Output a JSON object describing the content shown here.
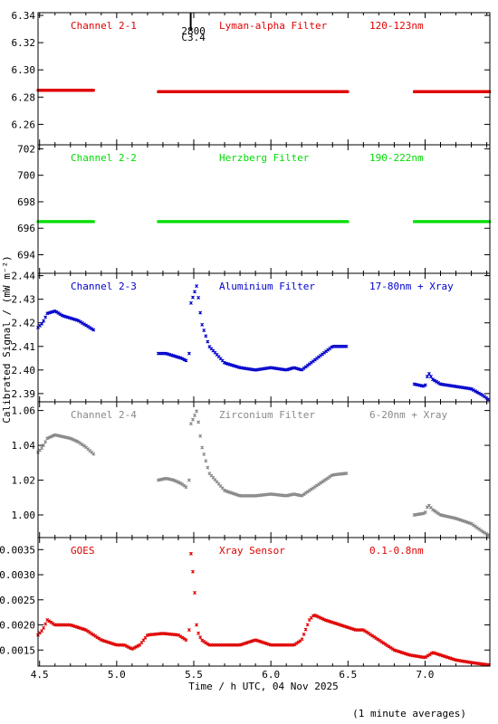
{
  "chart_data": {
    "type": "scatter",
    "xlabel": "Time / h UTC, 04 Nov 2025",
    "ylabel": "Calibrated Signal / (mW m⁻²)",
    "footnote": "(1 minute averages)",
    "x_ticks": [
      "4.5",
      "5.0",
      "5.5",
      "6.0",
      "6.5",
      "7.0"
    ],
    "x_tick_values": [
      4.5,
      5.0,
      5.5,
      6.0,
      6.5,
      7.0
    ],
    "xlim": [
      4.49,
      7.42
    ],
    "marker_annotation": {
      "x": 5.48,
      "label_top": "2800",
      "label_bottom": "C3.4"
    },
    "panels": [
      {
        "name": "Channel 2-1",
        "filter": "Lyman-alpha Filter",
        "band": "120-123nm",
        "color": "#e00000",
        "ylim": [
          6.245,
          6.342
        ],
        "y_ticks": [
          "6.34",
          "6.32",
          "6.30",
          "6.28",
          "6.26"
        ],
        "y_tick_values": [
          6.34,
          6.32,
          6.3,
          6.28,
          6.26
        ],
        "segments": [
          {
            "x": [
              4.49,
              4.6,
              4.7,
              4.85
            ],
            "y": [
              6.285,
              6.285,
              6.285,
              6.285
            ]
          },
          {
            "x": [
              5.27,
              5.5,
              5.8,
              6.1,
              6.5
            ],
            "y": [
              6.284,
              6.284,
              6.284,
              6.284,
              6.284
            ]
          },
          {
            "x": [
              6.93,
              7.1,
              7.3,
              7.42
            ],
            "y": [
              6.284,
              6.284,
              6.284,
              6.284
            ]
          }
        ]
      },
      {
        "name": "Channel 2-2",
        "filter": "Herzberg Filter",
        "band": "190-222nm",
        "color": "#00dd00",
        "ylim": [
          692.6,
          702.3
        ],
        "y_ticks": [
          "702",
          "700",
          "698",
          "696",
          "694"
        ],
        "y_tick_values": [
          702,
          700,
          698,
          696,
          694
        ],
        "segments": [
          {
            "x": [
              4.49,
              4.6,
              4.7,
              4.85
            ],
            "y": [
              696.5,
              696.5,
              696.5,
              696.5
            ]
          },
          {
            "x": [
              5.27,
              5.5,
              5.8,
              6.1,
              6.5
            ],
            "y": [
              696.5,
              696.5,
              696.5,
              696.5,
              696.5
            ]
          },
          {
            "x": [
              6.93,
              7.1,
              7.3,
              7.42
            ],
            "y": [
              696.5,
              696.5,
              696.5,
              696.5
            ]
          }
        ]
      },
      {
        "name": "Channel 2-3",
        "filter": "Aluminium Filter",
        "band": "17-80nm + Xray",
        "color": "#0000cc",
        "ylim": [
          2.3865,
          2.441
        ],
        "y_ticks": [
          "2.44",
          "2.43",
          "2.42",
          "2.41",
          "2.40",
          "2.39"
        ],
        "y_tick_values": [
          2.44,
          2.43,
          2.42,
          2.41,
          2.4,
          2.39
        ],
        "segments": [
          {
            "x": [
              4.49,
              4.52,
              4.55,
              4.6,
              4.65,
              4.7,
              4.75,
              4.8,
              4.85
            ],
            "y": [
              2.418,
              2.42,
              2.424,
              2.425,
              2.423,
              2.422,
              2.421,
              2.419,
              2.417
            ]
          },
          {
            "x": [
              5.27,
              5.32,
              5.37,
              5.42,
              5.45
            ],
            "y": [
              2.407,
              2.407,
              2.406,
              2.405,
              2.404
            ]
          },
          {
            "x": [
              5.47,
              5.48,
              5.5,
              5.52,
              5.55,
              5.6,
              5.7,
              5.8,
              5.9,
              6.0,
              6.1,
              6.15,
              6.2,
              6.3,
              6.4,
              6.5
            ],
            "y": [
              2.407,
              2.428,
              2.432,
              2.436,
              2.42,
              2.41,
              2.403,
              2.401,
              2.4,
              2.401,
              2.4,
              2.401,
              2.4,
              2.405,
              2.41,
              2.41
            ]
          },
          {
            "x": [
              6.93,
              7.0,
              7.02,
              7.05,
              7.1,
              7.2,
              7.3,
              7.38,
              7.42
            ],
            "y": [
              2.394,
              2.393,
              2.399,
              2.396,
              2.394,
              2.393,
              2.392,
              2.389,
              2.387
            ]
          }
        ]
      },
      {
        "name": "Channel 2-4",
        "filter": "Zirconium Filter",
        "band": "6-20nm + Xray",
        "color": "#888888",
        "ylim": [
          0.987,
          1.065
        ],
        "y_ticks": [
          "1.06",
          "1.04",
          "1.02",
          "1.00"
        ],
        "y_tick_values": [
          1.06,
          1.04,
          1.02,
          1.0
        ],
        "segments": [
          {
            "x": [
              4.49,
              4.52,
              4.55,
              4.6,
              4.65,
              4.7,
              4.75,
              4.8,
              4.85
            ],
            "y": [
              1.036,
              1.039,
              1.044,
              1.046,
              1.045,
              1.044,
              1.042,
              1.039,
              1.035
            ]
          },
          {
            "x": [
              5.27,
              5.32,
              5.37,
              5.42,
              5.45
            ],
            "y": [
              1.02,
              1.021,
              1.02,
              1.018,
              1.016
            ]
          },
          {
            "x": [
              5.47,
              5.48,
              5.5,
              5.52,
              5.55,
              5.6,
              5.7,
              5.8,
              5.9,
              6.0,
              6.1,
              6.15,
              6.2,
              6.3,
              6.4,
              6.5
            ],
            "y": [
              1.02,
              1.052,
              1.056,
              1.06,
              1.04,
              1.024,
              1.014,
              1.011,
              1.011,
              1.012,
              1.011,
              1.012,
              1.011,
              1.017,
              1.023,
              1.024
            ]
          },
          {
            "x": [
              6.93,
              7.0,
              7.02,
              7.05,
              7.1,
              7.2,
              7.3,
              7.38,
              7.42
            ],
            "y": [
              1.0,
              1.001,
              1.006,
              1.003,
              1.0,
              0.998,
              0.995,
              0.99,
              0.988
            ]
          }
        ]
      },
      {
        "name": "GOES",
        "filter": "Xray Sensor",
        "band": "0.1-0.8nm",
        "color": "#e00000",
        "ylim": [
          0.00118,
          0.00374
        ],
        "y_ticks": [
          "0.0035",
          "0.0030",
          "0.0025",
          "0.0020",
          "0.0015"
        ],
        "y_tick_values": [
          0.0035,
          0.003,
          0.0025,
          0.002,
          0.0015
        ],
        "segments": [
          {
            "x": [
              4.49,
              4.52,
              4.55,
              4.6,
              4.7,
              4.8,
              4.9,
              5.0,
              5.05,
              5.1,
              5.15,
              5.2,
              5.3,
              5.4,
              5.45
            ],
            "y": [
              0.0018,
              0.0019,
              0.0021,
              0.002,
              0.002,
              0.0019,
              0.0017,
              0.0016,
              0.0016,
              0.00152,
              0.0016,
              0.0018,
              0.00183,
              0.0018,
              0.0017
            ]
          },
          {
            "x": [
              5.47,
              5.48,
              5.49,
              5.5,
              5.51,
              5.52,
              5.55,
              5.6,
              5.65,
              5.7,
              5.8,
              5.9,
              6.0,
              6.1,
              6.15,
              6.2,
              6.25,
              6.28,
              6.35,
              6.45,
              6.55,
              6.6,
              6.7,
              6.8,
              6.9,
              7.0,
              7.05,
              7.1,
              7.2,
              7.3,
              7.42
            ],
            "y": [
              0.0019,
              0.0035,
              0.0031,
              0.003,
              0.0024,
              0.0019,
              0.0017,
              0.0016,
              0.0016,
              0.0016,
              0.0016,
              0.0017,
              0.0016,
              0.0016,
              0.0016,
              0.0017,
              0.0021,
              0.0022,
              0.0021,
              0.002,
              0.0019,
              0.0019,
              0.0017,
              0.0015,
              0.0014,
              0.00135,
              0.00145,
              0.0014,
              0.0013,
              0.00125,
              0.0012
            ]
          }
        ]
      }
    ]
  }
}
